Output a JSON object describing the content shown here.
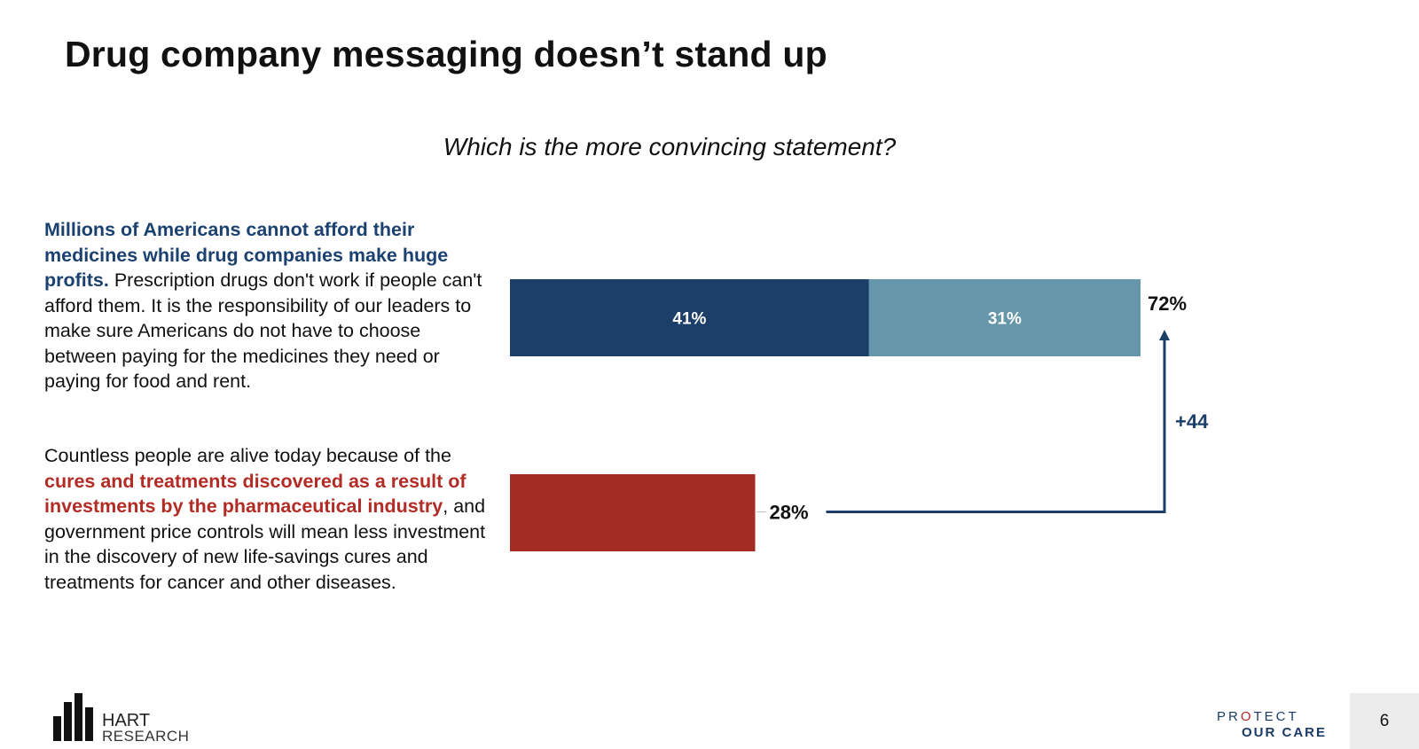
{
  "slide": {
    "title": "Drug company messaging doesn’t stand up",
    "question": "Which is the more convincing statement?",
    "page_number": "6"
  },
  "statements": {
    "pro": {
      "highlight": "Millions of Americans cannot afford their medicines while drug companies make huge profits.",
      "rest": " Prescription drugs don't work if people can't afford them.  It is the responsibility of our leaders to make sure Americans do not have to choose between paying for the medicines they need or paying for food and rent."
    },
    "con": {
      "before": "Countless people are alive today because of the ",
      "highlight": "cures and treatments discovered as a result of investments by the pharmaceutical industry",
      "after": ", and government price controls will mean less investment in the discovery of new life-savings cures and treatments for cancer and other diseases."
    }
  },
  "chart_data": {
    "type": "bar",
    "orientation": "horizontal",
    "stacked": true,
    "bars": [
      {
        "segments": [
          {
            "value": 41,
            "label": "41%",
            "color": "#1c3f69"
          },
          {
            "value": 31,
            "label": "31%",
            "color": "#6596a9"
          }
        ],
        "total": 72,
        "total_label": "72%"
      },
      {
        "segments": [
          {
            "value": 28,
            "label": "",
            "color": "#a32d25"
          }
        ],
        "total": 28,
        "total_label": "28%"
      }
    ],
    "difference": {
      "value": 44,
      "label": "+44",
      "color": "#1c3f69"
    },
    "xlim": [
      0,
      72
    ],
    "colors": {
      "pro_highlight": "#1b4170",
      "con_highlight": "#b32b25"
    }
  },
  "footer": {
    "left_logo_line1": "HART",
    "left_logo_line2": "RESEARCH",
    "right_logo_line1_a": "PR",
    "right_logo_line1_o": "O",
    "right_logo_line1_b": "TECT",
    "right_logo_line2": "OUR CARE"
  }
}
